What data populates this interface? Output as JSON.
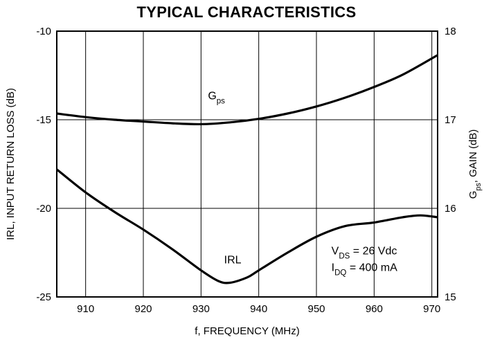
{
  "page_title": "TYPICAL CHARACTERISTICS",
  "chart_data": {
    "type": "line",
    "title": "TYPICAL CHARACTERISTICS",
    "xlabel": "f, FREQUENCY (MHz)",
    "ylabel_left": "IRL, INPUT RETURN LOSS (dB)",
    "ylabel_right": {
      "main": "G",
      "sub": "ps",
      "rest": ", GAIN (dB)"
    },
    "xlim": [
      905,
      971
    ],
    "ylim_left": [
      -25,
      -10
    ],
    "ylim_right": [
      15,
      18
    ],
    "x_ticks": [
      910,
      920,
      930,
      940,
      950,
      960,
      970
    ],
    "y_ticks_left": [
      -10,
      -15,
      -20,
      -25
    ],
    "y_ticks_right": [
      18,
      17,
      16,
      15
    ],
    "grid": true,
    "series": [
      {
        "name": "IRL",
        "label": {
          "main": "IRL",
          "sub": ""
        },
        "axis": "left",
        "x": [
          905,
          910,
          915,
          920,
          925,
          930,
          933,
          935,
          938,
          940,
          945,
          950,
          955,
          960,
          965,
          968,
          971
        ],
        "y": [
          -17.8,
          -19.1,
          -20.2,
          -21.2,
          -22.3,
          -23.5,
          -24.1,
          -24.2,
          -23.9,
          -23.5,
          -22.5,
          -21.6,
          -21.0,
          -20.8,
          -20.5,
          -20.4,
          -20.5
        ]
      },
      {
        "name": "Gps",
        "label": {
          "main": "G",
          "sub": "ps"
        },
        "axis": "right",
        "x": [
          905,
          910,
          915,
          920,
          925,
          930,
          935,
          940,
          945,
          950,
          955,
          960,
          965,
          971
        ],
        "y": [
          17.07,
          17.03,
          17.0,
          16.98,
          16.96,
          16.95,
          16.97,
          17.01,
          17.07,
          17.15,
          17.25,
          17.37,
          17.51,
          17.73
        ]
      }
    ],
    "conditions": [
      {
        "main": "V",
        "sub": "DS",
        "rest": " = 26 Vdc"
      },
      {
        "main": "I",
        "sub": "DQ",
        "rest": " = 400 mA"
      }
    ]
  }
}
